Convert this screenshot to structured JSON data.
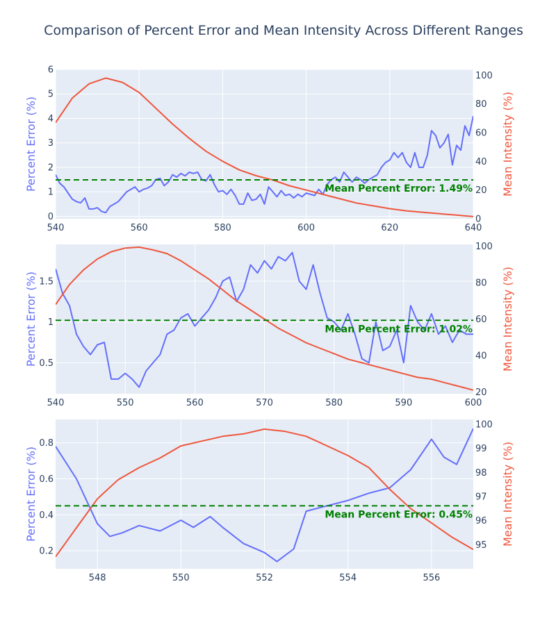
{
  "title": "Comparison of Percent Error and Mean Intensity Across Different Ranges",
  "colors": {
    "error": "#636efa",
    "intensity": "#ef553b",
    "mean_line": "#008000",
    "plot_bg": "#e5ecf6",
    "grid": "#ffffff",
    "text": "#2a3f5f"
  },
  "chart_data": [
    {
      "type": "line",
      "ylabel_left": "Percent Error (%)",
      "ylabel_right": "Mean Intensity (%)",
      "xlim": [
        540,
        640
      ],
      "ylim_left": [
        -0.1,
        6.0
      ],
      "ylim_right": [
        0,
        104
      ],
      "xticks": [
        540,
        560,
        580,
        600,
        620,
        640
      ],
      "yticks_left": [
        0,
        1,
        2,
        3,
        4,
        5,
        6
      ],
      "yticks_right": [
        0,
        20,
        40,
        60,
        80,
        100
      ],
      "mean_value": 1.49,
      "annotation": "Mean Percent Error: 1.49%",
      "series": [
        {
          "name": "Percent Error",
          "axis": "left",
          "x": [
            540,
            541,
            542,
            543,
            544,
            545,
            546,
            547,
            548,
            549,
            550,
            551,
            552,
            553,
            554,
            555,
            556,
            557,
            558,
            559,
            560,
            561,
            562,
            563,
            564,
            565,
            566,
            567,
            568,
            569,
            570,
            571,
            572,
            573,
            574,
            575,
            576,
            577,
            578,
            579,
            580,
            581,
            582,
            583,
            584,
            585,
            586,
            587,
            588,
            589,
            590,
            591,
            592,
            593,
            594,
            595,
            596,
            597,
            598,
            599,
            600,
            601,
            602,
            603,
            604,
            605,
            606,
            607,
            608,
            609,
            610,
            611,
            612,
            613,
            614,
            615,
            616,
            617,
            618,
            619,
            620,
            621,
            622,
            623,
            624,
            625,
            626,
            627,
            628,
            629,
            630,
            631,
            632,
            633,
            634,
            635,
            636,
            637,
            638,
            639,
            640
          ],
          "y": [
            1.7,
            1.35,
            1.2,
            0.95,
            0.7,
            0.6,
            0.55,
            0.75,
            0.3,
            0.3,
            0.35,
            0.2,
            0.15,
            0.4,
            0.5,
            0.6,
            0.8,
            1.0,
            1.1,
            1.2,
            1.0,
            1.1,
            1.15,
            1.25,
            1.5,
            1.55,
            1.25,
            1.4,
            1.7,
            1.6,
            1.75,
            1.65,
            1.8,
            1.75,
            1.8,
            1.5,
            1.45,
            1.7,
            1.3,
            1.0,
            1.05,
            0.9,
            1.1,
            0.85,
            0.5,
            0.5,
            0.95,
            0.65,
            0.7,
            0.9,
            0.5,
            1.2,
            1.0,
            0.8,
            1.05,
            0.85,
            0.9,
            0.75,
            0.9,
            0.8,
            0.95,
            0.9,
            0.85,
            1.1,
            0.9,
            1.3,
            1.5,
            1.6,
            1.4,
            1.8,
            1.6,
            1.4,
            1.6,
            1.5,
            1.35,
            1.5,
            1.6,
            1.7,
            2.0,
            2.2,
            2.3,
            2.6,
            2.4,
            2.6,
            2.2,
            2.0,
            2.6,
            2.0,
            2.0,
            2.5,
            3.5,
            3.3,
            2.8,
            3.0,
            3.35,
            2.1,
            2.9,
            2.7,
            3.7,
            3.3,
            4.1
          ]
        },
        {
          "name": "Mean Intensity",
          "axis": "right",
          "x": [
            540,
            544,
            548,
            552,
            556,
            560,
            564,
            568,
            572,
            576,
            580,
            584,
            588,
            592,
            596,
            600,
            604,
            608,
            612,
            616,
            620,
            624,
            628,
            632,
            636,
            640
          ],
          "y": [
            67,
            84,
            94,
            98,
            95,
            88,
            77,
            66,
            56,
            47,
            40,
            34,
            30,
            27,
            23,
            20,
            17,
            14,
            11,
            9,
            7,
            5.5,
            4.5,
            3.5,
            2.5,
            1.5
          ]
        }
      ]
    },
    {
      "type": "line",
      "ylabel_left": "Percent Error (%)",
      "ylabel_right": "Mean Intensity (%)",
      "xlim": [
        540,
        600
      ],
      "ylim_left": [
        0.12,
        1.95
      ],
      "ylim_right": [
        19,
        101
      ],
      "xticks": [
        540,
        550,
        560,
        570,
        580,
        590,
        600
      ],
      "yticks_left": [
        0.5,
        1,
        1.5
      ],
      "yticks_right": [
        20,
        40,
        60,
        80,
        100
      ],
      "mean_value": 1.02,
      "annotation": "Mean Percent Error: 1.02%",
      "series": [
        {
          "name": "Percent Error",
          "axis": "left",
          "x": [
            540,
            541,
            542,
            543,
            544,
            545,
            546,
            547,
            548,
            549,
            550,
            551,
            552,
            553,
            554,
            555,
            556,
            557,
            558,
            559,
            560,
            561,
            562,
            563,
            564,
            565,
            566,
            567,
            568,
            569,
            570,
            571,
            572,
            573,
            574,
            575,
            576,
            577,
            578,
            579,
            580,
            581,
            582,
            583,
            584,
            585,
            586,
            587,
            588,
            589,
            590,
            591,
            592,
            593,
            594,
            595,
            596,
            597,
            598,
            599,
            600
          ],
          "y": [
            1.65,
            1.35,
            1.2,
            0.85,
            0.7,
            0.6,
            0.72,
            0.75,
            0.3,
            0.3,
            0.37,
            0.3,
            0.2,
            0.4,
            0.5,
            0.6,
            0.85,
            0.9,
            1.05,
            1.1,
            0.95,
            1.05,
            1.15,
            1.3,
            1.5,
            1.55,
            1.25,
            1.4,
            1.7,
            1.6,
            1.75,
            1.65,
            1.8,
            1.75,
            1.85,
            1.5,
            1.4,
            1.7,
            1.35,
            1.05,
            1.0,
            0.9,
            1.1,
            0.85,
            0.55,
            0.5,
            1.0,
            0.65,
            0.7,
            0.9,
            0.5,
            1.2,
            1.0,
            0.9,
            1.1,
            0.85,
            0.95,
            0.75,
            0.9,
            0.85,
            0.85
          ]
        },
        {
          "name": "Mean Intensity",
          "axis": "right",
          "x": [
            540,
            542,
            544,
            546,
            548,
            550,
            552,
            554,
            556,
            558,
            560,
            562,
            564,
            566,
            568,
            570,
            572,
            574,
            576,
            578,
            580,
            582,
            584,
            586,
            588,
            590,
            592,
            594,
            596,
            598,
            600
          ],
          "y": [
            68,
            79,
            87,
            93,
            97,
            99,
            99.5,
            98,
            96,
            92,
            87,
            82,
            76,
            70,
            65,
            60,
            55,
            51,
            47,
            44,
            41,
            38,
            36,
            34,
            32,
            30,
            28,
            27,
            25,
            23,
            21
          ]
        }
      ]
    },
    {
      "type": "line",
      "ylabel_left": "Percent Error (%)",
      "ylabel_right": "Mean Intensity (%)",
      "xlim": [
        547,
        557
      ],
      "ylim_left": [
        0.1,
        0.93
      ],
      "ylim_right": [
        94,
        100.2
      ],
      "xticks": [
        548,
        550,
        552,
        554,
        556
      ],
      "yticks_left": [
        0.2,
        0.4,
        0.6,
        0.8
      ],
      "yticks_right": [
        95,
        96,
        97,
        98,
        99,
        100
      ],
      "mean_value": 0.45,
      "annotation": "Mean Percent Error: 0.45%",
      "series": [
        {
          "name": "Percent Error",
          "axis": "left",
          "x": [
            547,
            547.5,
            548,
            548.3,
            548.6,
            549,
            549.5,
            550,
            550.3,
            550.7,
            551,
            551.5,
            552,
            552.3,
            552.7,
            553,
            553.5,
            554,
            554.5,
            555,
            555.5,
            556,
            556.3,
            556.6,
            557
          ],
          "y": [
            0.78,
            0.6,
            0.35,
            0.28,
            0.3,
            0.34,
            0.31,
            0.37,
            0.33,
            0.39,
            0.33,
            0.24,
            0.19,
            0.14,
            0.21,
            0.42,
            0.45,
            0.48,
            0.52,
            0.55,
            0.65,
            0.82,
            0.72,
            0.68,
            0.88
          ]
        },
        {
          "name": "Mean Intensity",
          "axis": "right",
          "x": [
            547,
            547.5,
            548,
            548.5,
            549,
            549.5,
            550,
            550.5,
            551,
            551.5,
            552,
            552.5,
            553,
            553.5,
            554,
            554.5,
            555,
            555.5,
            556,
            556.5,
            557
          ],
          "y": [
            94.5,
            95.7,
            96.9,
            97.7,
            98.2,
            98.6,
            99.1,
            99.3,
            99.5,
            99.6,
            99.8,
            99.7,
            99.5,
            99.1,
            98.7,
            98.2,
            97.3,
            96.5,
            95.9,
            95.3,
            94.8
          ]
        }
      ]
    }
  ]
}
